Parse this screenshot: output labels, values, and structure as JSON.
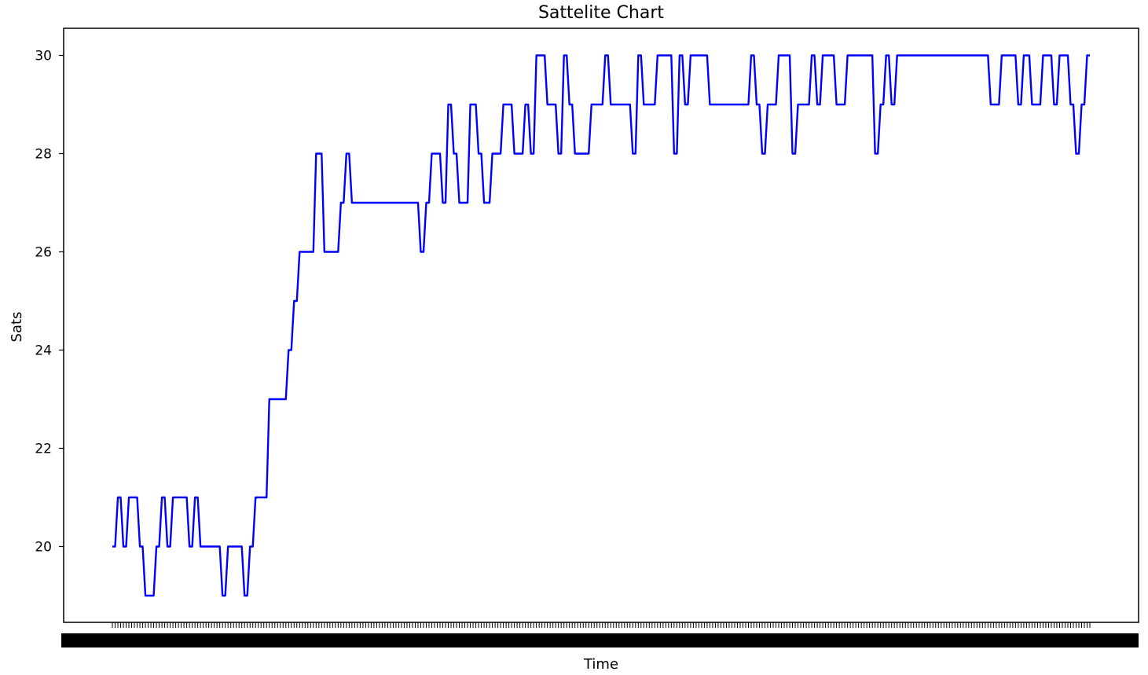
{
  "chart_data": {
    "type": "line",
    "title": "Sattelite Chart",
    "xlabel": "Time",
    "ylabel": "Sats",
    "ylim": [
      18.5,
      30.55
    ],
    "yticks": [
      20,
      22,
      24,
      26,
      28,
      30
    ],
    "x_tick_labels_legible": false,
    "grid": false,
    "legend": "none",
    "colors": {
      "line": "#0000ff",
      "axes": "#000000",
      "background": "#ffffff"
    },
    "series": [
      {
        "values": [
          20,
          20,
          21,
          21,
          20,
          20,
          21,
          21,
          21,
          21,
          20,
          20,
          19,
          19,
          19,
          19,
          20,
          20,
          21,
          21,
          20,
          20,
          21,
          21,
          21,
          21,
          21,
          21,
          20,
          20,
          21,
          21,
          20,
          20,
          20,
          20,
          20,
          20,
          20,
          20,
          19,
          19,
          20,
          20,
          20,
          20,
          20,
          20,
          19,
          19,
          20,
          20,
          21,
          21,
          21,
          21,
          21,
          23,
          23,
          23,
          23,
          23,
          23,
          23,
          24,
          24,
          25,
          25,
          26,
          26,
          26,
          26,
          26,
          26,
          28,
          28,
          28,
          26,
          26,
          26,
          26,
          26,
          26,
          27,
          27,
          28,
          28,
          27,
          27,
          27,
          27,
          27,
          27,
          27,
          27,
          27,
          27,
          27,
          27,
          27,
          27,
          27,
          27,
          27,
          27,
          27,
          27,
          27,
          27,
          27,
          27,
          27,
          26,
          26,
          27,
          27,
          28,
          28,
          28,
          28,
          27,
          27,
          29,
          29,
          28,
          28,
          27,
          27,
          27,
          27,
          29,
          29,
          29,
          28,
          28,
          27,
          27,
          27,
          28,
          28,
          28,
          28,
          29,
          29,
          29,
          29,
          28,
          28,
          28,
          28,
          29,
          29,
          28,
          28,
          30,
          30,
          30,
          30,
          29,
          29,
          29,
          29,
          28,
          28,
          30,
          30,
          29,
          29,
          28,
          28,
          28,
          28,
          28,
          28,
          29,
          29,
          29,
          29,
          29,
          30,
          30,
          29,
          29,
          29,
          29,
          29,
          29,
          29,
          29,
          28,
          28,
          30,
          30,
          29,
          29,
          29,
          29,
          29,
          30,
          30,
          30,
          30,
          30,
          30,
          28,
          28,
          30,
          30,
          29,
          29,
          30,
          30,
          30,
          30,
          30,
          30,
          30,
          29,
          29,
          29,
          29,
          29,
          29,
          29,
          29,
          29,
          29,
          29,
          29,
          29,
          29,
          29,
          30,
          30,
          29,
          29,
          28,
          28,
          29,
          29,
          29,
          29,
          30,
          30,
          30,
          30,
          30,
          28,
          28,
          29,
          29,
          29,
          29,
          29,
          30,
          30,
          29,
          29,
          30,
          30,
          30,
          30,
          30,
          29,
          29,
          29,
          29,
          30,
          30,
          30,
          30,
          30,
          30,
          30,
          30,
          30,
          30,
          28,
          28,
          29,
          29,
          30,
          30,
          29,
          29,
          30,
          30,
          30,
          30,
          30,
          30,
          30,
          30,
          30,
          30,
          30,
          30,
          30,
          30,
          30,
          30,
          30,
          30,
          30,
          30,
          30,
          30,
          30,
          30,
          30,
          30,
          30,
          30,
          30,
          30,
          30,
          30,
          30,
          30,
          29,
          29,
          29,
          29,
          30,
          30,
          30,
          30,
          30,
          30,
          29,
          29,
          30,
          30,
          30,
          29,
          29,
          29,
          29,
          30,
          30,
          30,
          30,
          29,
          29,
          30,
          30,
          30,
          30,
          29,
          29,
          28,
          28,
          29,
          29,
          30,
          30
        ]
      }
    ]
  }
}
